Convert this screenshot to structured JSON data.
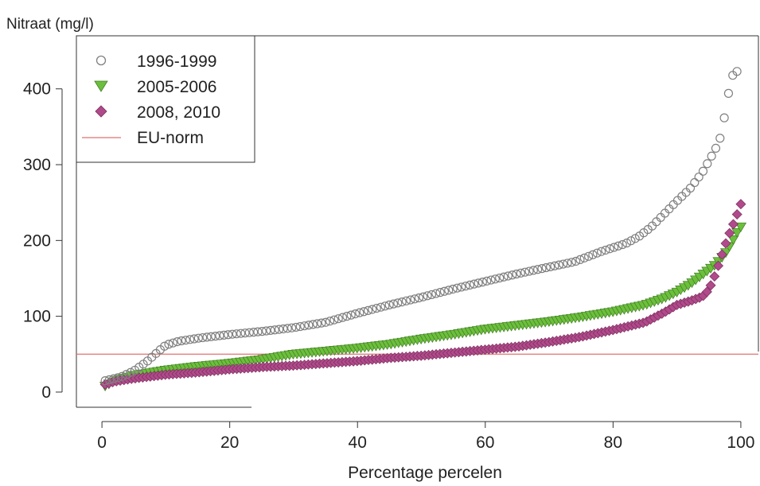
{
  "chart_data": {
    "type": "scatter",
    "ylabel": "Nitraat (mg/l)",
    "xlabel": "Percentage percelen",
    "xlim": [
      -4,
      103
    ],
    "ylim": [
      -20,
      470
    ],
    "xticks": [
      0,
      20,
      40,
      60,
      80,
      100
    ],
    "yticks": [
      0,
      100,
      200,
      300,
      400
    ],
    "reference_line": {
      "name": "EU-norm",
      "y": 50,
      "color": "#e07070"
    },
    "legend_position": "top-left",
    "series": [
      {
        "name": "1996-1999",
        "marker": "open-circle",
        "color": "#808080",
        "anchors": [
          [
            0.5,
            15
          ],
          [
            3,
            20
          ],
          [
            5,
            28
          ],
          [
            7,
            40
          ],
          [
            9,
            55
          ],
          [
            10,
            62
          ],
          [
            12,
            67
          ],
          [
            15,
            71
          ],
          [
            20,
            76
          ],
          [
            25,
            80
          ],
          [
            30,
            85
          ],
          [
            35,
            92
          ],
          [
            40,
            104
          ],
          [
            45,
            115
          ],
          [
            50,
            125
          ],
          [
            55,
            136
          ],
          [
            60,
            146
          ],
          [
            65,
            156
          ],
          [
            70,
            165
          ],
          [
            74,
            172
          ],
          [
            78,
            185
          ],
          [
            82,
            196
          ],
          [
            84,
            205
          ],
          [
            86,
            218
          ],
          [
            88,
            235
          ],
          [
            90,
            252
          ],
          [
            92,
            268
          ],
          [
            94,
            290
          ],
          [
            95,
            305
          ],
          [
            96,
            320
          ],
          [
            97,
            340
          ],
          [
            97.6,
            372
          ],
          [
            98.2,
            400
          ],
          [
            98.8,
            420
          ],
          [
            99.4,
            423
          ]
        ],
        "n": 150
      },
      {
        "name": "2005-2006",
        "marker": "triangle-down",
        "color": "#6cbf3c",
        "anchors": [
          [
            0.5,
            8
          ],
          [
            2,
            15
          ],
          [
            5,
            22
          ],
          [
            10,
            29
          ],
          [
            15,
            34
          ],
          [
            20,
            38
          ],
          [
            25,
            43
          ],
          [
            30,
            50
          ],
          [
            35,
            54
          ],
          [
            40,
            58
          ],
          [
            45,
            63
          ],
          [
            50,
            70
          ],
          [
            55,
            76
          ],
          [
            60,
            83
          ],
          [
            65,
            88
          ],
          [
            70,
            93
          ],
          [
            75,
            99
          ],
          [
            80,
            106
          ],
          [
            85,
            115
          ],
          [
            88,
            124
          ],
          [
            90,
            132
          ],
          [
            92,
            142
          ],
          [
            94,
            155
          ],
          [
            96,
            168
          ],
          [
            97.5,
            182
          ],
          [
            98.5,
            196
          ],
          [
            99.5,
            212
          ],
          [
            100,
            218
          ]
        ],
        "n": 170
      },
      {
        "name": "2008, 2010",
        "marker": "diamond",
        "color": "#b04a8a",
        "anchors": [
          [
            0.5,
            10
          ],
          [
            2,
            14
          ],
          [
            5,
            18
          ],
          [
            10,
            23
          ],
          [
            15,
            26
          ],
          [
            20,
            30
          ],
          [
            25,
            33
          ],
          [
            30,
            35
          ],
          [
            35,
            38
          ],
          [
            40,
            41
          ],
          [
            45,
            45
          ],
          [
            50,
            48
          ],
          [
            55,
            52
          ],
          [
            60,
            56
          ],
          [
            65,
            60
          ],
          [
            70,
            66
          ],
          [
            75,
            73
          ],
          [
            80,
            82
          ],
          [
            85,
            92
          ],
          [
            88,
            105
          ],
          [
            90,
            115
          ],
          [
            92,
            120
          ],
          [
            94,
            126
          ],
          [
            95,
            135
          ],
          [
            96,
            155
          ],
          [
            97,
            180
          ],
          [
            98,
            205
          ],
          [
            99,
            225
          ],
          [
            100,
            248
          ]
        ],
        "n": 170
      }
    ]
  }
}
